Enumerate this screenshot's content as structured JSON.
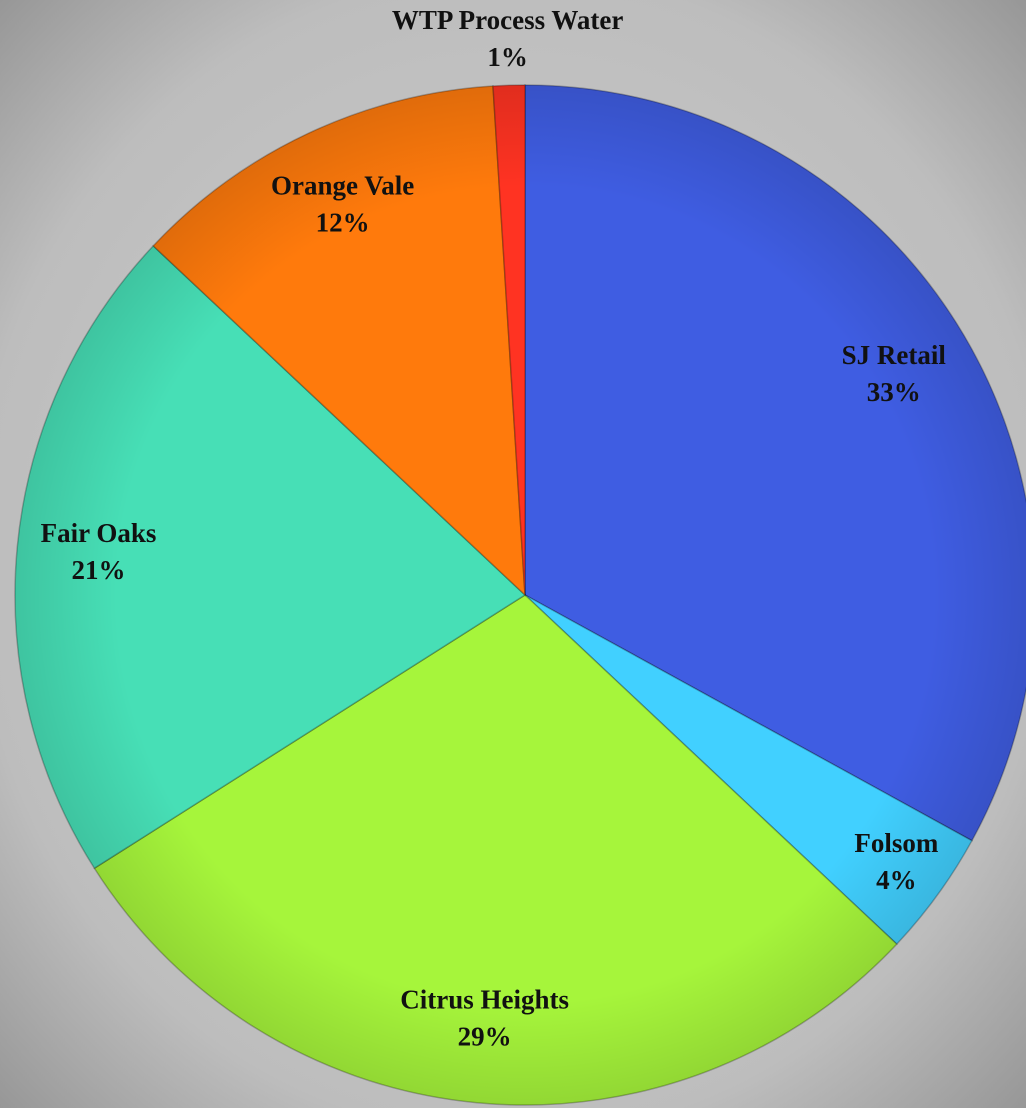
{
  "chart_data": {
    "type": "pie",
    "categories": [
      "SJ Retail",
      "Folsom",
      "Citrus Heights",
      "Fair Oaks",
      "Orange Vale",
      "WTP Process Water"
    ],
    "values": [
      33,
      4,
      29,
      21,
      12,
      1
    ],
    "value_labels": [
      "33%",
      "4%",
      "29%",
      "21%",
      "12%",
      "1%"
    ],
    "colors": [
      "#3f5de2",
      "#41d0ff",
      "#a6f53b",
      "#47dfb6",
      "#ff7a0c",
      "#ff3322"
    ]
  }
}
